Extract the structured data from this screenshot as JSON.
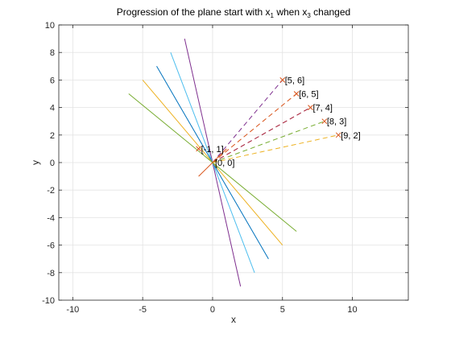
{
  "chart_data": {
    "type": "line",
    "title": "Progression of the plane start with x1 when x3 changed",
    "title_parts": {
      "pre": "Progression of the plane start with x",
      "sub1": "1",
      "mid": " when x",
      "sub2": "3",
      "post": " changed"
    },
    "xlabel": "x",
    "ylabel": "y",
    "xlim": [
      -11,
      14
    ],
    "ylim": [
      -10,
      10
    ],
    "xticks": [
      -10,
      -5,
      0,
      5,
      10
    ],
    "yticks": [
      -10,
      -8,
      -6,
      -4,
      -2,
      0,
      2,
      4,
      6,
      8,
      10
    ],
    "grid": true,
    "solid_lines": [
      {
        "color": "#7e2f8e",
        "x": [
          -2,
          2
        ],
        "y": [
          9,
          -9
        ]
      },
      {
        "color": "#4dbeee",
        "x": [
          -3,
          3
        ],
        "y": [
          8,
          -8
        ]
      },
      {
        "color": "#0072bd",
        "x": [
          -4,
          4
        ],
        "y": [
          7,
          -7
        ]
      },
      {
        "color": "#edb120",
        "x": [
          -5,
          5
        ],
        "y": [
          6,
          -6
        ]
      },
      {
        "color": "#77ac30",
        "x": [
          -6,
          6
        ],
        "y": [
          5,
          -5
        ]
      },
      {
        "color": "#d95319",
        "x": [
          -1,
          1
        ],
        "y": [
          -1,
          1
        ]
      }
    ],
    "dashed_lines": [
      {
        "color": "#7e2f8e",
        "x": [
          0,
          5
        ],
        "y": [
          0,
          6
        ]
      },
      {
        "color": "#d95319",
        "x": [
          0,
          6
        ],
        "y": [
          0,
          5
        ]
      },
      {
        "color": "#a2142f",
        "x": [
          0,
          7
        ],
        "y": [
          0,
          4
        ]
      },
      {
        "color": "#77ac30",
        "x": [
          0,
          8
        ],
        "y": [
          0,
          3
        ]
      },
      {
        "color": "#edb120",
        "x": [
          0,
          9
        ],
        "y": [
          0,
          2
        ]
      }
    ],
    "points": [
      {
        "x": 5,
        "y": 6,
        "label": "[5, 6]"
      },
      {
        "x": 6,
        "y": 5,
        "label": "[6, 5]"
      },
      {
        "x": 7,
        "y": 4,
        "label": "[7, 4]"
      },
      {
        "x": 8,
        "y": 3,
        "label": "[8, 3]"
      },
      {
        "x": 9,
        "y": 2,
        "label": "[9, 2]"
      },
      {
        "x": -1,
        "y": 1,
        "label": "[-1, 1]"
      },
      {
        "x": 0,
        "y": 0,
        "label": "[0, 0]"
      }
    ],
    "marker_color": "#d95319"
  }
}
